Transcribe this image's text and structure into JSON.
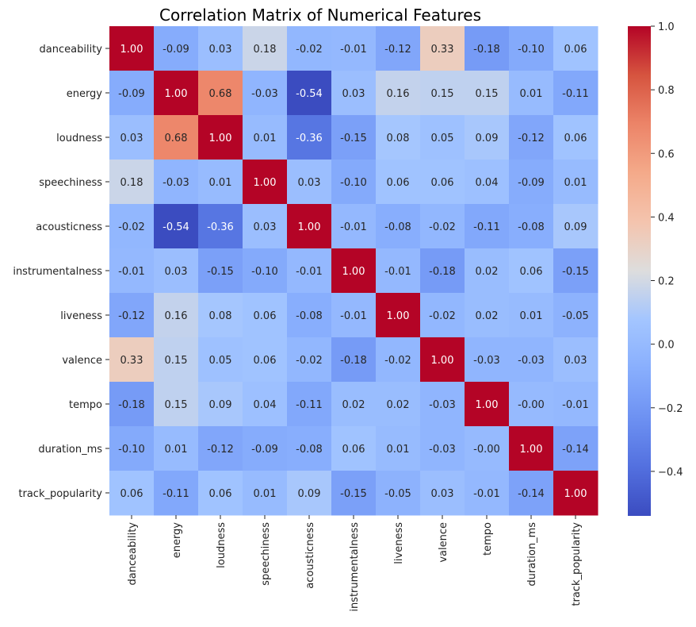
{
  "chart_data": {
    "type": "heatmap",
    "title": "Correlation Matrix of Numerical Features",
    "xlabel": "",
    "ylabel": "",
    "labels": [
      "danceability",
      "energy",
      "loudness",
      "speechiness",
      "acousticness",
      "instrumentalness",
      "liveness",
      "valence",
      "tempo",
      "duration_ms",
      "track_popularity"
    ],
    "matrix": [
      [
        1.0,
        -0.09,
        0.03,
        0.18,
        -0.02,
        -0.01,
        -0.12,
        0.33,
        -0.18,
        -0.1,
        0.06
      ],
      [
        -0.09,
        1.0,
        0.68,
        -0.03,
        -0.54,
        0.03,
        0.16,
        0.15,
        0.15,
        0.01,
        -0.11
      ],
      [
        0.03,
        0.68,
        1.0,
        0.01,
        -0.36,
        -0.15,
        0.08,
        0.05,
        0.09,
        -0.12,
        0.06
      ],
      [
        0.18,
        -0.03,
        0.01,
        1.0,
        0.03,
        -0.1,
        0.06,
        0.06,
        0.04,
        -0.09,
        0.01
      ],
      [
        -0.02,
        -0.54,
        -0.36,
        0.03,
        1.0,
        -0.01,
        -0.08,
        -0.02,
        -0.11,
        -0.08,
        0.09
      ],
      [
        -0.01,
        0.03,
        -0.15,
        -0.1,
        -0.01,
        1.0,
        -0.01,
        -0.18,
        0.02,
        0.06,
        -0.15
      ],
      [
        -0.12,
        0.16,
        0.08,
        0.06,
        -0.08,
        -0.01,
        1.0,
        -0.02,
        0.02,
        0.01,
        -0.05
      ],
      [
        0.33,
        0.15,
        0.05,
        0.06,
        -0.02,
        -0.18,
        -0.02,
        1.0,
        -0.03,
        -0.03,
        0.03
      ],
      [
        -0.18,
        0.15,
        0.09,
        0.04,
        -0.11,
        0.02,
        0.02,
        -0.03,
        1.0,
        -0.0,
        -0.01
      ],
      [
        -0.1,
        0.01,
        -0.12,
        -0.09,
        -0.08,
        0.06,
        0.01,
        -0.03,
        -0.0,
        1.0,
        -0.14
      ],
      [
        0.06,
        -0.11,
        0.06,
        0.01,
        0.09,
        -0.15,
        -0.05,
        0.03,
        -0.01,
        -0.14,
        1.0
      ]
    ],
    "value_format": "0.00",
    "colormap": "coolwarm",
    "vmin": -0.54,
    "vmax": 1.0,
    "colorbar": {
      "ticks": [
        1.0,
        0.8,
        0.6,
        0.4,
        0.2,
        0.0,
        -0.2,
        -0.4
      ],
      "tick_labels": [
        "1.0",
        "0.8",
        "0.6",
        "0.4",
        "0.2",
        "0.0",
        "−0.2",
        "−0.4"
      ]
    }
  }
}
